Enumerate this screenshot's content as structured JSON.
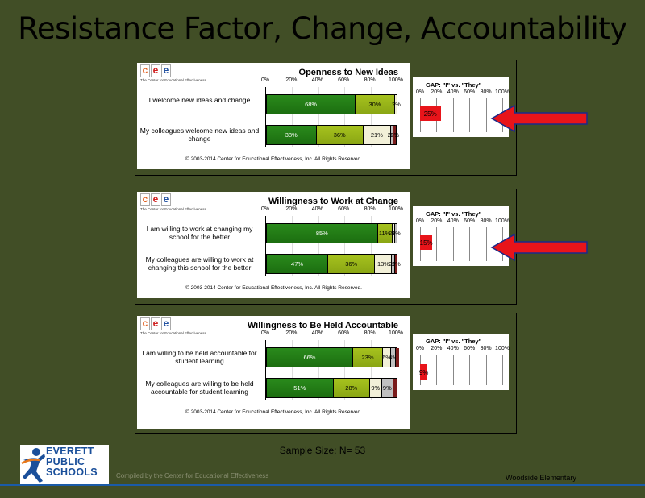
{
  "slide_title": "Resistance Factor, Change, Accountability",
  "logo_letters": [
    "c",
    "e",
    "e"
  ],
  "logo_letter_colors": [
    "#e06020",
    "#d02020",
    "#2050a0"
  ],
  "logo_sub": "The Center for Educational Effectiveness",
  "axis_ticks": [
    "0%",
    "20%",
    "40%",
    "60%",
    "80%",
    "100%"
  ],
  "gap_ticks": [
    "0%",
    "20%",
    "40%",
    "60%",
    "80%",
    "100%"
  ],
  "gap_title": "GAP: \"I\" vs. \"They\"",
  "copyright": "© 2003-2014 Center for Educational Effectiveness, Inc. All Rights Reserved.",
  "segment_colors": [
    "#1f7414",
    "#9bb81a",
    "#f2f0d8",
    "#c0c0c0",
    "#7a1c1c"
  ],
  "gap_color": "#e8141a",
  "arrow_color": "#e8141a",
  "sample_size": "Sample Size: N= 53",
  "compiled_by": "Compiled by the Center for Educational Effectiveness",
  "school_name": "Woodside Elementary",
  "district_logo": [
    "EVERETT",
    "PUBLIC",
    "SCHOOLS"
  ],
  "chart_data": [
    {
      "type": "bar",
      "title": "Openness to New Ideas",
      "categories": [
        "I welcome new ideas and change",
        "My colleagues welcome new ideas and change"
      ],
      "series": [
        {
          "values": [
            68,
            38
          ],
          "labels": [
            "68%",
            "38%"
          ]
        },
        {
          "values": [
            30,
            36
          ],
          "labels": [
            "30%",
            "36%"
          ]
        },
        {
          "values": [
            2,
            21
          ],
          "labels": [
            "2%",
            "21%"
          ]
        },
        {
          "values": [
            0,
            2
          ],
          "labels": [
            "",
            "2%"
          ]
        },
        {
          "values": [
            0,
            2
          ],
          "labels": [
            "",
            "2%"
          ]
        }
      ],
      "xlim": [
        0,
        100
      ],
      "gap": {
        "value": 25,
        "label": "25%"
      }
    },
    {
      "type": "bar",
      "title": "Willingness to Work at Change",
      "categories": [
        "I am willing to work at changing my school for the better",
        "My colleagues are willing to work at changing this school for the better"
      ],
      "series": [
        {
          "values": [
            85,
            47
          ],
          "labels": [
            "85%",
            "47%"
          ]
        },
        {
          "values": [
            11,
            36
          ],
          "labels": [
            "11%",
            "36%"
          ]
        },
        {
          "values": [
            2,
            13
          ],
          "labels": [
            "2%",
            "13%"
          ]
        },
        {
          "values": [
            2,
            2
          ],
          "labels": [
            "2%",
            "2%"
          ]
        },
        {
          "values": [
            0,
            2
          ],
          "labels": [
            "",
            "2%"
          ]
        }
      ],
      "xlim": [
        0,
        100
      ],
      "gap": {
        "value": 15,
        "label": "15%"
      }
    },
    {
      "type": "bar",
      "title": "Willingness to Be Held Accountable",
      "categories": [
        "I am willing to be held accountable for student learning",
        "My colleagues are willing to be held accountable for student learning"
      ],
      "series": [
        {
          "values": [
            66,
            51
          ],
          "labels": [
            "66%",
            "51%"
          ]
        },
        {
          "values": [
            23,
            28
          ],
          "labels": [
            "23%",
            "28%"
          ]
        },
        {
          "values": [
            6,
            9
          ],
          "labels": [
            "6%",
            "9%"
          ]
        },
        {
          "values": [
            4,
            9
          ],
          "labels": [
            "4%",
            "9%"
          ]
        },
        {
          "values": [
            2,
            3
          ],
          "labels": [
            "",
            ""
          ]
        }
      ],
      "xlim": [
        0,
        100
      ],
      "gap": {
        "value": 9,
        "label": "9%"
      }
    }
  ]
}
